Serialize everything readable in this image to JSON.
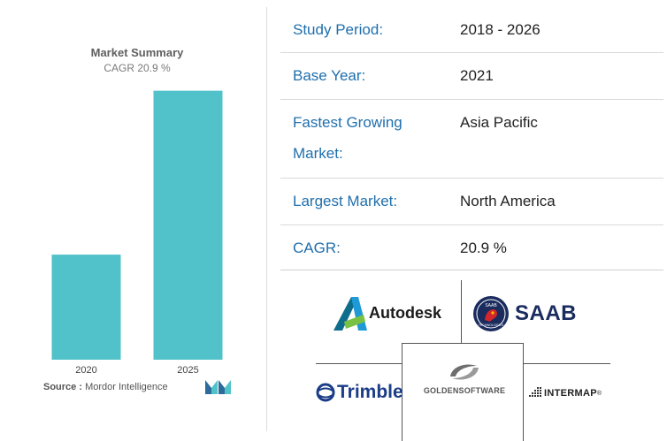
{
  "chart_data": {
    "type": "bar",
    "title": "Market Summary",
    "subtitle": "CAGR 20.9 %",
    "categories": [
      "2020",
      "2025"
    ],
    "values": [
      1.0,
      2.56
    ],
    "ylim": [
      0,
      2.7
    ],
    "bar_color": "#51c2c9",
    "grid": false
  },
  "source": {
    "label": "Source :",
    "text": "Mordor Intelligence"
  },
  "stats": [
    {
      "key": "Study Period:",
      "value": "2018 - 2026"
    },
    {
      "key": "Base Year:",
      "value": "2021"
    },
    {
      "key": "Fastest Growing Market:",
      "value": "Asia Pacific"
    },
    {
      "key": "Largest Market:",
      "value": "North America"
    },
    {
      "key": "CAGR:",
      "value": "20.9 %"
    }
  ],
  "logos": {
    "autodesk": "Autodesk",
    "saab": "SAAB",
    "saab_badge_top": "SAAB",
    "saab_badge_bottom": "TECHNOLOGIES",
    "trimble": "Trimble",
    "golden_software": "GOLDENSOFTWARE",
    "intermap": "INTERMAP"
  },
  "colors": {
    "key_text": "#1f6fad",
    "accent_teal": "#51c2c9",
    "saab_blue": "#1a2b5e"
  }
}
